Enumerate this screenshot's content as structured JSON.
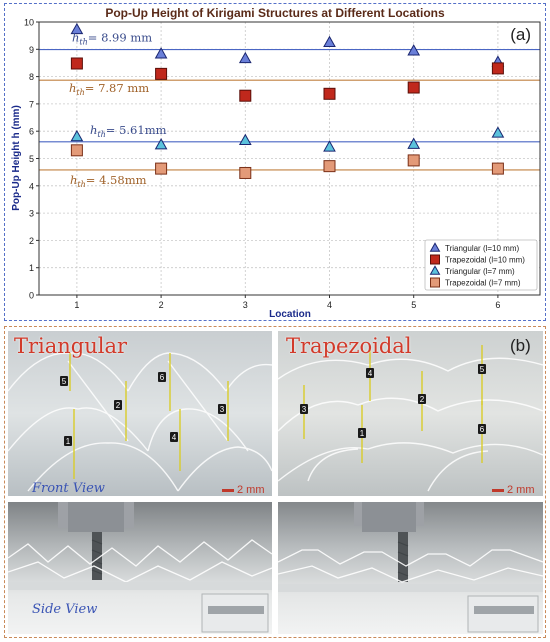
{
  "panel_a": {
    "tag": "(a)",
    "chart_data": {
      "type": "scatter",
      "title": "Pop-Up Height of Kirigami Structures at Different Locations",
      "xlabel": "Location",
      "ylabel": "Pop-Up Height h (mm)",
      "x": [
        1,
        2,
        3,
        4,
        5,
        6
      ],
      "xlim": [
        0.55,
        6.5
      ],
      "ylim": [
        0,
        10
      ],
      "xticks": [
        "1",
        "2",
        "3",
        "4",
        "5",
        "6"
      ],
      "yticks": [
        "0",
        "1",
        "2",
        "3",
        "4",
        "5",
        "6",
        "7",
        "8",
        "9",
        "10"
      ],
      "grid": true,
      "legend_position": "bottom-right",
      "series": [
        {
          "name": "Triangular (l=10 mm)",
          "marker": "triangle",
          "color": "#6a7fd8",
          "edge": "#1a2670",
          "values": [
            9.72,
            8.83,
            8.66,
            9.25,
            8.94,
            8.53
          ]
        },
        {
          "name": "Trapezoidal (l=10 mm)",
          "marker": "square",
          "color": "#c0281c",
          "edge": "#5a0e08",
          "values": [
            8.48,
            8.1,
            7.3,
            7.37,
            7.6,
            8.3
          ]
        },
        {
          "name": "Triangular (l=7 mm)",
          "marker": "triangle",
          "color": "#5bc2dc",
          "edge": "#1a2670",
          "values": [
            5.8,
            5.5,
            5.66,
            5.42,
            5.52,
            5.93
          ]
        },
        {
          "name": "Trapezoidal (l=7 mm)",
          "marker": "square",
          "color": "#e39a78",
          "edge": "#7a3018",
          "values": [
            5.3,
            4.63,
            4.47,
            4.72,
            4.93,
            4.63
          ]
        }
      ],
      "reference_lines": [
        {
          "value": 8.99,
          "color": "#4a66c4",
          "label_text": "= 8.99 mm"
        },
        {
          "value": 7.87,
          "color": "#c08040",
          "label_text": "= 7.87 mm"
        },
        {
          "value": 5.61,
          "color": "#4a66c4",
          "label_text": "= 5.61mm"
        },
        {
          "value": 4.58,
          "color": "#c08040",
          "label_text": "= 4.58mm"
        }
      ],
      "reference_symbol": {
        "base": "h",
        "sub": "th"
      }
    }
  },
  "panel_b": {
    "tag": "(b)",
    "triangular_label": "Triangular",
    "trapezoidal_label": "Trapezoidal",
    "front_view_label": "Front View",
    "side_view_label": "Side View",
    "scale_text": "2 mm",
    "tri_numbers": [
      "5",
      "2",
      "6",
      "3",
      "1",
      "4"
    ],
    "trap_numbers": [
      "4",
      "5",
      "3",
      "2",
      "1",
      "6"
    ]
  }
}
